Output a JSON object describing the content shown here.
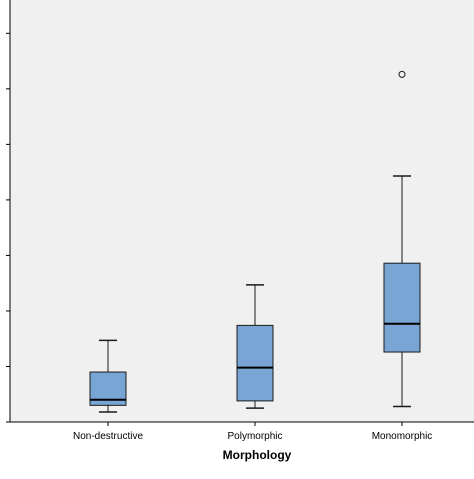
{
  "chart_data": {
    "type": "boxplot",
    "xlabel": "Morphology",
    "ylabel": "",
    "ylim": [
      0,
      7.6
    ],
    "y_ticks": [
      0,
      1,
      2,
      3,
      4,
      5,
      6,
      7
    ],
    "y_tick_labels_visible": false,
    "grid": false,
    "categories": [
      "Non-destructive",
      "Polymorphic",
      "Monomorphic"
    ],
    "boxes": [
      {
        "category": "Non-destructive",
        "whisker_low": 0.18,
        "q1": 0.3,
        "median": 0.4,
        "q3": 0.9,
        "whisker_high": 1.47,
        "outliers": []
      },
      {
        "category": "Polymorphic",
        "whisker_low": 0.25,
        "q1": 0.38,
        "median": 0.98,
        "q3": 1.74,
        "whisker_high": 2.47,
        "outliers": []
      },
      {
        "category": "Monomorphic",
        "whisker_low": 0.28,
        "q1": 1.26,
        "median": 1.77,
        "q3": 2.86,
        "whisker_high": 4.43,
        "outliers": [
          6.26
        ]
      }
    ],
    "colors": {
      "plot_background": "#f0f0f0",
      "box_fill": "#79a5d4",
      "box_stroke": "#1a1a1a",
      "median": "#000000",
      "axis": "#000000"
    }
  }
}
